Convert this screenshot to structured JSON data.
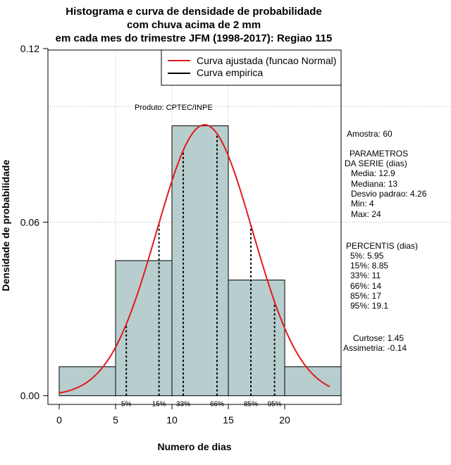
{
  "chart_data": {
    "type": "bar",
    "title_lines": [
      "Histograma e curva de densidade de probabilidade",
      "com chuva acima de 2 mm",
      "em cada mes do trimestre JFM (1998-2017): Regiao 115"
    ],
    "xlabel": "Numero de dias",
    "ylabel": "Densidade de probabilidade",
    "xlim": [
      -1,
      25
    ],
    "ylim": [
      -0.003,
      0.1195
    ],
    "x_ticks": [
      0,
      5,
      10,
      15,
      20
    ],
    "y_ticks": [
      0.0,
      0.06,
      0.12
    ],
    "y_tick_labels": [
      "0.00",
      "0.06",
      "0.12"
    ],
    "bins": [
      {
        "from": 0,
        "to": 5,
        "density": 0.01
      },
      {
        "from": 5,
        "to": 10,
        "density": 0.0467
      },
      {
        "from": 10,
        "to": 15,
        "density": 0.0933
      },
      {
        "from": 15,
        "to": 20,
        "density": 0.04
      },
      {
        "from": 20,
        "to": 25,
        "density": 0.01
      }
    ],
    "bar_color": "#b8cece",
    "curve_color": "#e31a1c",
    "normal_fit": {
      "mean": 12.9,
      "sd": 4.26,
      "from": 0,
      "to": 24
    },
    "grid_y": [
      0.06,
      0.1
    ],
    "grid_x": [
      5,
      10,
      15
    ],
    "legend": [
      {
        "label": "Curva ajustada (funcao Normal)",
        "color": "#e31a1c"
      },
      {
        "label": "Curva empirica",
        "color": "#000000"
      }
    ],
    "annotation": "Produto: CPTEC/INPE",
    "percentiles": [
      {
        "label": "5%",
        "value": 5.95
      },
      {
        "label": "15%",
        "value": 8.85
      },
      {
        "label": "33%",
        "value": 11
      },
      {
        "label": "66%",
        "value": 14
      },
      {
        "label": "85%",
        "value": 17
      },
      {
        "label": "95%",
        "value": 19.1
      }
    ]
  },
  "stats": {
    "amostra": "Amostra: 60",
    "parametros_title": "PARAMETROS",
    "parametros_subtitle": "DA SERIE (dias)",
    "media": "Media: 12.9",
    "mediana": "Mediana: 13",
    "desvio": "Desvio padrao: 4.26",
    "min": "Min: 4",
    "max": "Max: 24",
    "percentis_title": "PERCENTIS (dias)",
    "p5": "5%: 5.95",
    "p15": "15%: 8.85",
    "p33": "33%: 11",
    "p66": "66%: 14",
    "p85": "85%: 17",
    "p95": "95%: 19.1",
    "curtose": "Curtose: 1.45",
    "assimetria": "Assimetria: -0.14"
  }
}
